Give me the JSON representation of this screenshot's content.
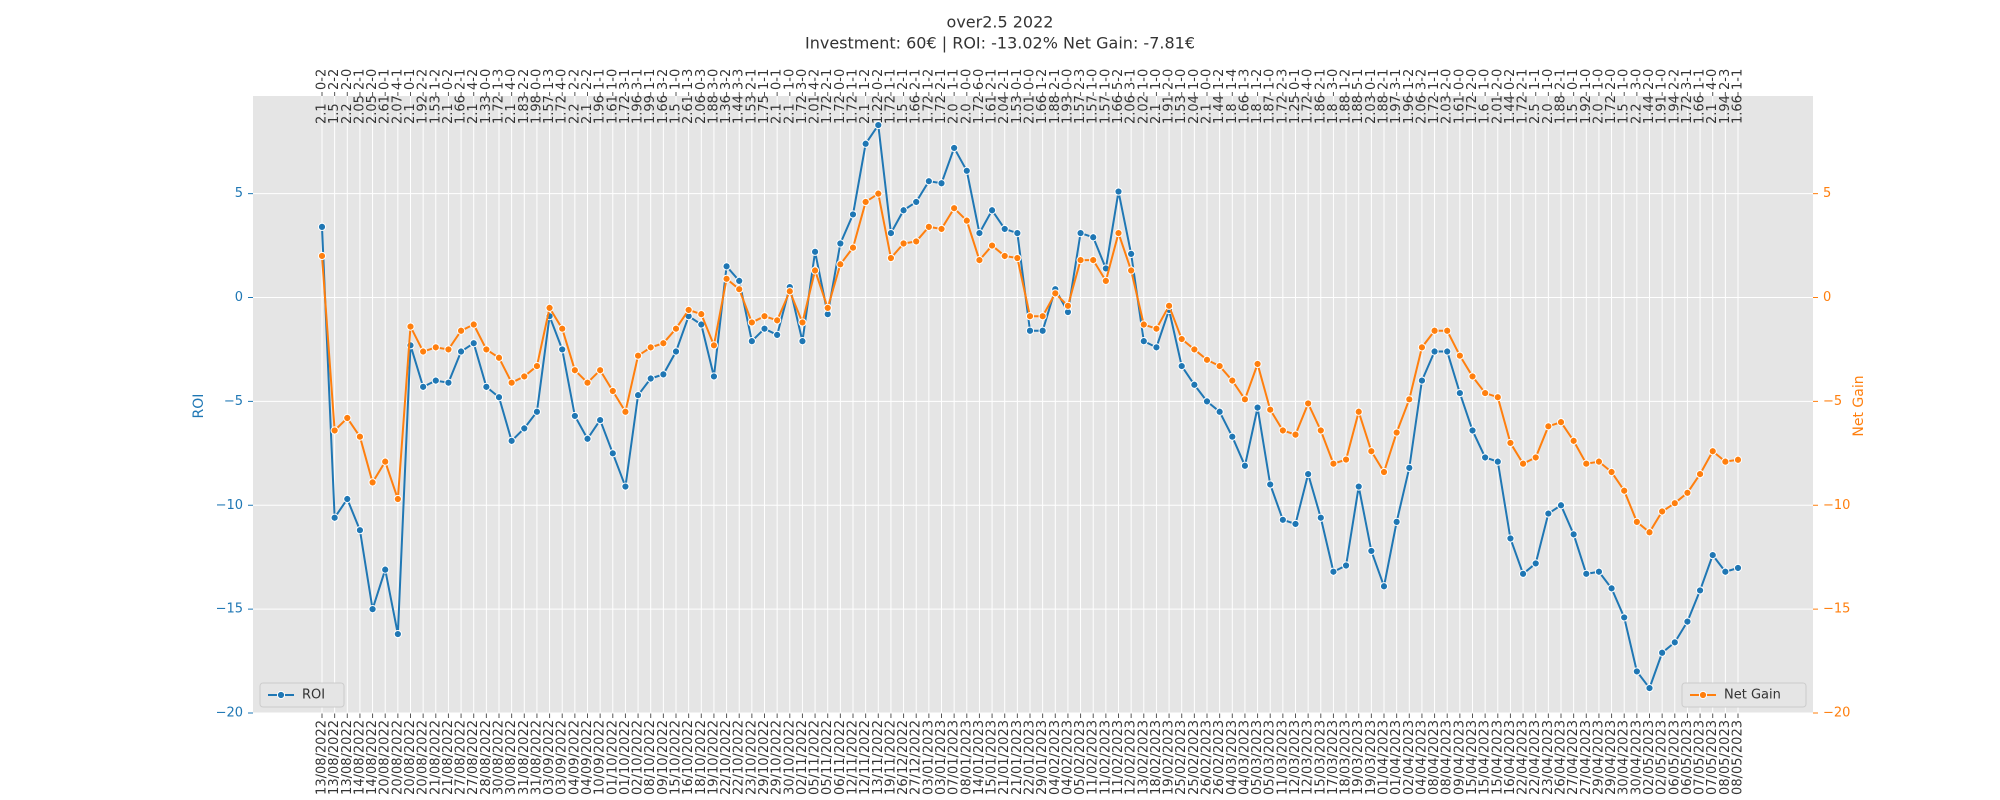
{
  "chart_data": {
    "type": "line",
    "title": "over2.5 2022",
    "subtitle": "Investment: 60€ | ROI: -13.02% Net Gain: -7.81€",
    "y_label": "ROI",
    "y2_label": "Net Gain",
    "categories": [
      "13/08/2022",
      "13/08/2022",
      "13/08/2022",
      "14/08/2022",
      "14/08/2022",
      "20/08/2022",
      "20/08/2022",
      "20/08/2022",
      "20/08/2022",
      "21/08/2022",
      "21/08/2022",
      "27/08/2022",
      "27/08/2022",
      "28/08/2022",
      "30/08/2022",
      "30/08/2022",
      "31/08/2022",
      "31/08/2022",
      "03/09/2022",
      "03/09/2022",
      "04/09/2022",
      "04/09/2022",
      "10/09/2022",
      "01/10/2022",
      "01/10/2022",
      "02/10/2022",
      "08/10/2022",
      "09/10/2022",
      "15/10/2022",
      "16/10/2022",
      "18/10/2022",
      "19/10/2022",
      "22/10/2022",
      "22/10/2022",
      "23/10/2022",
      "29/10/2022",
      "29/10/2022",
      "30/10/2022",
      "02/11/2022",
      "05/11/2022",
      "05/11/2022",
      "06/11/2022",
      "12/11/2022",
      "12/11/2022",
      "13/11/2022",
      "19/11/2022",
      "26/12/2022",
      "27/12/2022",
      "03/01/2023",
      "03/01/2023",
      "07/01/2023",
      "08/01/2023",
      "14/01/2023",
      "15/01/2023",
      "21/01/2023",
      "21/01/2023",
      "22/01/2023",
      "29/01/2023",
      "04/02/2023",
      "04/02/2023",
      "05/02/2023",
      "11/02/2023",
      "11/02/2023",
      "11/02/2023",
      "12/02/2023",
      "13/02/2023",
      "18/02/2023",
      "19/02/2023",
      "25/02/2023",
      "25/02/2023",
      "26/02/2023",
      "26/02/2023",
      "04/03/2023",
      "04/03/2023",
      "05/03/2023",
      "05/03/2023",
      "11/03/2023",
      "12/03/2023",
      "12/03/2023",
      "15/03/2023",
      "17/03/2023",
      "18/03/2023",
      "19/03/2023",
      "19/03/2023",
      "01/04/2023",
      "01/04/2023",
      "02/04/2023",
      "04/04/2023",
      "08/04/2023",
      "08/04/2023",
      "09/04/2023",
      "15/04/2023",
      "15/04/2023",
      "15/04/2023",
      "16/04/2023",
      "22/04/2023",
      "22/04/2023",
      "23/04/2023",
      "26/04/2023",
      "27/04/2023",
      "27/04/2023",
      "29/04/2023",
      "29/04/2023",
      "30/04/2023",
      "30/04/2023",
      "02/05/2023",
      "02/05/2023",
      "06/05/2023",
      "06/05/2023",
      "07/05/2023",
      "07/05/2023",
      "08/05/2023",
      "08/05/2023"
    ],
    "top_scores": [
      "0-2",
      "2-2",
      "2-0",
      "2-1",
      "2-0",
      "0-1",
      "4-1",
      "0-1",
      "2-2",
      "1-2",
      "0-2",
      "2-1",
      "4-2",
      "0-0",
      "1-3",
      "4-0",
      "2-2",
      "0-0",
      "1-3",
      "4-0",
      "2-2",
      "2-2",
      "1-1",
      "1-0",
      "3-1",
      "3-1",
      "1-1",
      "3-2",
      "1-0",
      "1-3",
      "0-3",
      "3-0",
      "3-2",
      "3-3",
      "2-1",
      "1-1",
      "0-1",
      "1-0",
      "3-0",
      "4-2",
      "2-1",
      "0-0",
      "1-1",
      "1-2",
      "0-2",
      "1-1",
      "2-1",
      "2-1",
      "1-2",
      "2-1",
      "1-1",
      "0-0",
      "6-0",
      "2-1",
      "2-1",
      "0-1",
      "0-0",
      "1-2",
      "2-1",
      "0-0",
      "2-3",
      "1-0",
      "1-0",
      "5-2",
      "3-1",
      "1-0",
      "1-0",
      "2-0",
      "1-0",
      "1-0",
      "0-0",
      "1-2",
      "1-4",
      "1-3",
      "1-2",
      "1-0",
      "2-3",
      "0-1",
      "4-0",
      "2-1",
      "3-0",
      "1-2",
      "5-1",
      "0-1",
      "2-1",
      "3-1",
      "1-2",
      "3-2",
      "1-1",
      "2-0",
      "0-0",
      "2-0",
      "1-0",
      "2-0",
      "0-2",
      "2-1",
      "1-1",
      "1-0",
      "2-1",
      "0-1",
      "1-0",
      "1-0",
      "2-0",
      "1-0",
      "3-0",
      "2-0",
      "1-0",
      "2-2",
      "3-1",
      "1-1",
      "4-0",
      "2-3",
      "1-1"
    ],
    "top_odds": [
      "2.1",
      "1.5",
      "2.2",
      "2.05",
      "2.05",
      "2.61",
      "2.07",
      "2.1",
      "1.92",
      "1.53",
      "2.1",
      "1.66",
      "2.1",
      "1.33",
      "1.72",
      "2.1",
      "1.83",
      "1.98",
      "1.57",
      "1.72",
      "2.2",
      "2.1",
      "1.96",
      "1.61",
      "1.72",
      "1.96",
      "1.99",
      "1.66",
      "1.5",
      "2.61",
      "2.06",
      "1.88",
      "1.36",
      "1.44",
      "1.53",
      "1.75",
      "2.1",
      "2.1",
      "1.72",
      "2.01",
      "1.72",
      "1.72",
      "1.72",
      "2.1",
      "1.22",
      "1.72",
      "1.5",
      "1.66",
      "1.72",
      "1.72",
      "2.0",
      "2.0",
      "1.72",
      "1.61",
      "2.04",
      "1.53",
      "2.01",
      "1.66",
      "1.88",
      "1.93",
      "1.57",
      "1.57",
      "1.57",
      "1.66",
      "2.06",
      "2.02",
      "2.1",
      "1.91",
      "1.53",
      "2.04",
      "2.1",
      "1.44",
      "1.8",
      "1.66",
      "1.8",
      "1.87",
      "1.72",
      "1.25",
      "1.72",
      "1.86",
      "1.8",
      "1.88",
      "1.88",
      "2.03",
      "1.88",
      "1.97",
      "1.96",
      "2.06",
      "1.72",
      "2.03",
      "1.61",
      "1.72",
      "1.6",
      "2.01",
      "1.44",
      "1.72",
      "2.5",
      "2.0",
      "1.88",
      "1.5",
      "1.92",
      "2.0",
      "1.72",
      "1.5",
      "2.2",
      "1.44",
      "1.91",
      "1.94",
      "1.72",
      "1.66",
      "2.1",
      "1.94",
      "1.66"
    ],
    "series": [
      {
        "name": "ROI",
        "color": "#1f77b4",
        "legend": "lower left",
        "values": [
          3.4,
          -10.6,
          -9.7,
          -11.2,
          -15.0,
          -13.1,
          -16.2,
          -2.3,
          -4.3,
          -4.0,
          -4.1,
          -2.6,
          -2.2,
          -4.3,
          -4.8,
          -6.9,
          -6.3,
          -5.5,
          -0.9,
          -2.5,
          -5.7,
          -6.8,
          -5.9,
          -7.5,
          -9.1,
          -4.7,
          -3.9,
          -3.7,
          -2.6,
          -0.9,
          -1.3,
          -3.8,
          1.5,
          0.8,
          -2.1,
          -1.5,
          -1.8,
          0.5,
          -2.1,
          2.2,
          -0.8,
          2.6,
          4.0,
          7.4,
          8.3,
          3.1,
          4.2,
          4.6,
          5.6,
          5.5,
          7.2,
          6.1,
          3.1,
          4.2,
          3.3,
          3.1,
          -1.6,
          -1.6,
          0.4,
          -0.7,
          3.1,
          2.9,
          1.4,
          5.1,
          2.1,
          -2.1,
          -2.4,
          -0.6,
          -3.3,
          -4.2,
          -5.0,
          -5.5,
          -6.7,
          -8.1,
          -5.3,
          -9.0,
          -10.7,
          -10.9,
          -8.5,
          -10.6,
          -13.2,
          -12.9,
          -9.1,
          -12.2,
          -13.9,
          -10.8,
          -8.2,
          -4.0,
          -2.6,
          -2.6,
          -4.6,
          -6.4,
          -7.7,
          -7.9,
          -11.6,
          -13.3,
          -12.8,
          -10.4,
          -10.0,
          -11.4,
          -13.3,
          -13.2,
          -14.0,
          -15.4,
          -18.0,
          -18.8,
          -17.1,
          -16.6,
          -15.6,
          -14.1,
          -12.4,
          -13.2,
          -13.02
        ]
      },
      {
        "name": "Net Gain",
        "color": "#ff7f0e",
        "axis": "y2",
        "legend": "lower right",
        "values": [
          2.0,
          -6.4,
          -5.8,
          -6.7,
          -8.9,
          -7.9,
          -9.7,
          -1.4,
          -2.6,
          -2.4,
          -2.5,
          -1.6,
          -1.3,
          -2.5,
          -2.9,
          -4.1,
          -3.8,
          -3.3,
          -0.5,
          -1.5,
          -3.5,
          -4.1,
          -3.5,
          -4.5,
          -5.5,
          -2.8,
          -2.4,
          -2.2,
          -1.5,
          -0.6,
          -0.8,
          -2.3,
          0.9,
          0.4,
          -1.2,
          -0.9,
          -1.1,
          0.3,
          -1.2,
          1.3,
          -0.5,
          1.6,
          2.4,
          4.6,
          5.0,
          1.9,
          2.6,
          2.7,
          3.4,
          3.3,
          4.3,
          3.7,
          1.8,
          2.5,
          2.0,
          1.9,
          -0.9,
          -0.9,
          0.2,
          -0.4,
          1.8,
          1.8,
          0.8,
          3.1,
          1.3,
          -1.3,
          -1.5,
          -0.4,
          -2.0,
          -2.5,
          -3.0,
          -3.3,
          -4.0,
          -4.9,
          -3.2,
          -5.4,
          -6.4,
          -6.6,
          -5.1,
          -6.4,
          -8.0,
          -7.8,
          -5.5,
          -7.4,
          -8.4,
          -6.5,
          -4.9,
          -2.4,
          -1.6,
          -1.6,
          -2.8,
          -3.8,
          -4.6,
          -4.8,
          -7.0,
          -8.0,
          -7.7,
          -6.2,
          -6.0,
          -6.9,
          -8.0,
          -7.9,
          -8.4,
          -9.3,
          -10.8,
          -11.3,
          -10.3,
          -9.9,
          -9.4,
          -8.5,
          -7.4,
          -7.9,
          -7.81
        ]
      }
    ],
    "ylim": [
      -20,
      9.7
    ],
    "yticks": [
      {
        "value": -20,
        "label": "−20"
      },
      {
        "value": -15,
        "label": "−15"
      },
      {
        "value": -10,
        "label": "−10"
      },
      {
        "value": -5,
        "label": "−5"
      },
      0,
      5
    ],
    "y2lim": [
      -20,
      9.7
    ],
    "y2ticks": [
      {
        "value": -20,
        "label": "−20"
      },
      {
        "value": -15,
        "label": "−15"
      },
      {
        "value": -10,
        "label": "−10"
      },
      {
        "value": -5,
        "label": "−5"
      },
      0,
      5
    ],
    "grid": true
  }
}
